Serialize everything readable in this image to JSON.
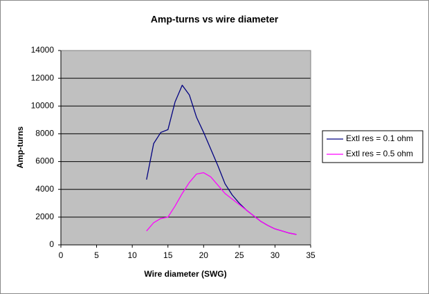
{
  "chart_data": {
    "type": "line",
    "title": "Amp-turns vs wire diameter",
    "x_label": "Wire diameter (SWG)",
    "y_label": "Amp-turns",
    "x": [
      12,
      13,
      14,
      15,
      16,
      17,
      18,
      19,
      20,
      21,
      22,
      23,
      24,
      25,
      26,
      27,
      28,
      29,
      30,
      31,
      32,
      33
    ],
    "series": [
      {
        "name": "Extl res = 0.1 ohm",
        "color": "#000080",
        "values": [
          4700,
          7300,
          8100,
          8300,
          10300,
          11500,
          10800,
          9200,
          8100,
          6900,
          5700,
          4400,
          3600,
          3000,
          2500,
          2100,
          1700,
          1400,
          1150,
          1000,
          850,
          750
        ]
      },
      {
        "name": "Extl res = 0.5 ohm",
        "color": "#ff00ff",
        "values": [
          1000,
          1600,
          1900,
          2000,
          2800,
          3700,
          4500,
          5100,
          5200,
          4900,
          4300,
          3700,
          3300,
          2900,
          2500,
          2100,
          1700,
          1400,
          1150,
          1000,
          850,
          750
        ]
      }
    ],
    "xlim": [
      0,
      35
    ],
    "xticks": [
      0,
      5,
      10,
      15,
      20,
      25,
      30,
      35
    ],
    "ylim": [
      0,
      14000
    ],
    "yticks": [
      0,
      2000,
      4000,
      6000,
      8000,
      10000,
      12000,
      14000
    ],
    "grid": true,
    "legend": "right"
  }
}
